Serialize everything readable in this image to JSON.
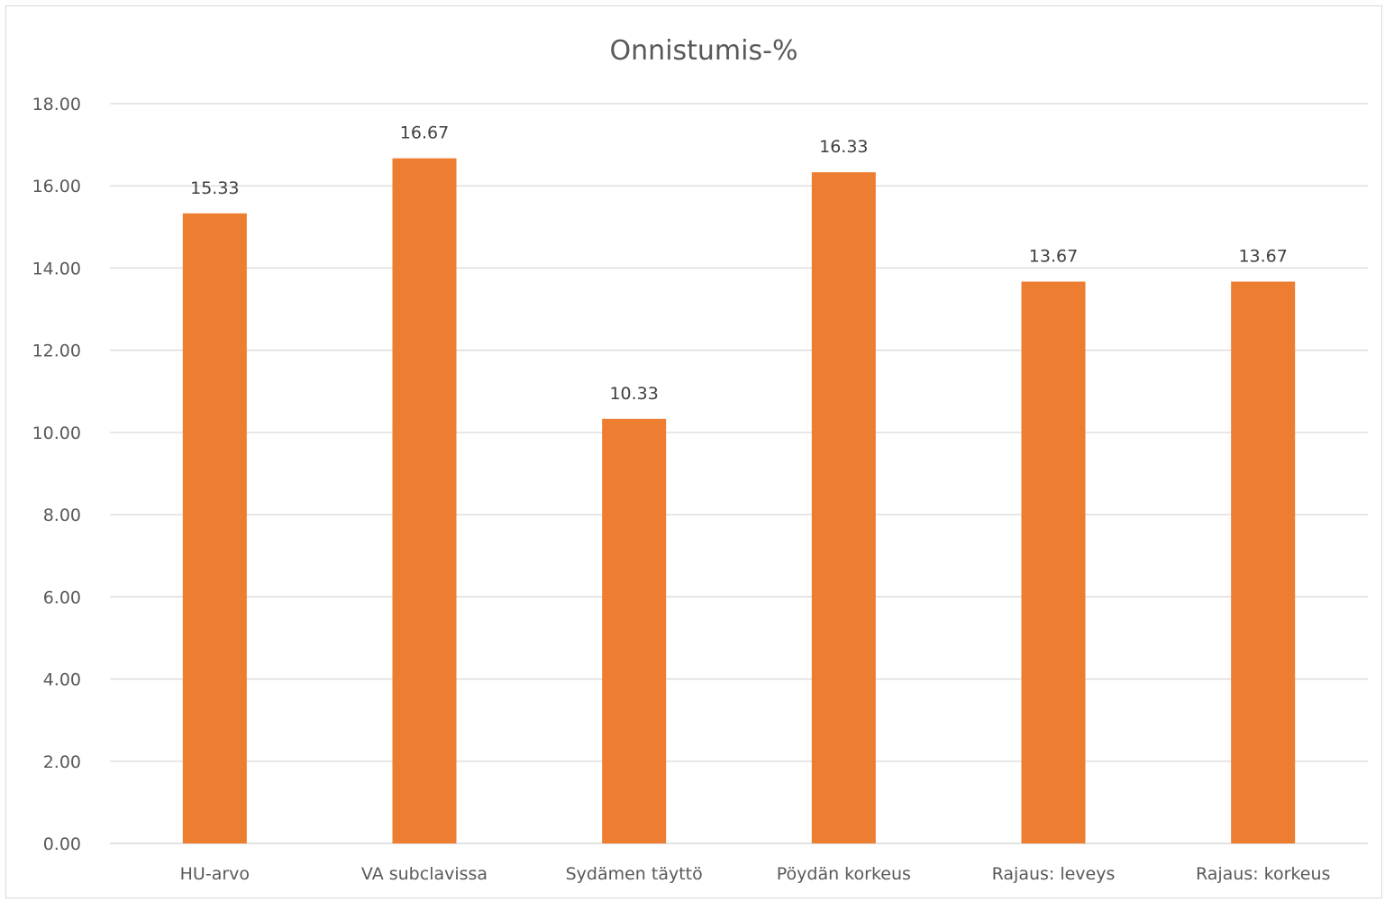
{
  "chart_data": {
    "type": "bar",
    "title": "Onnistumis-%",
    "xlabel": "",
    "ylabel": "",
    "categories": [
      "HU-arvo",
      "VA subclavissa",
      "Sydämen täyttö",
      "Pöydän korkeus",
      "Rajaus: leveys",
      "Rajaus: korkeus"
    ],
    "values": [
      15.33,
      16.67,
      10.33,
      16.33,
      13.67,
      13.67
    ],
    "data_labels": [
      "15.33",
      "16.67",
      "10.33",
      "16.33",
      "13.67",
      "13.67"
    ],
    "ylim": [
      0,
      18
    ],
    "yticks": [
      "0.00",
      "2.00",
      "4.00",
      "6.00",
      "8.00",
      "10.00",
      "12.00",
      "14.00",
      "16.00",
      "18.00"
    ],
    "grid": true,
    "legend": "none",
    "bar_color": "#ED7D31"
  }
}
